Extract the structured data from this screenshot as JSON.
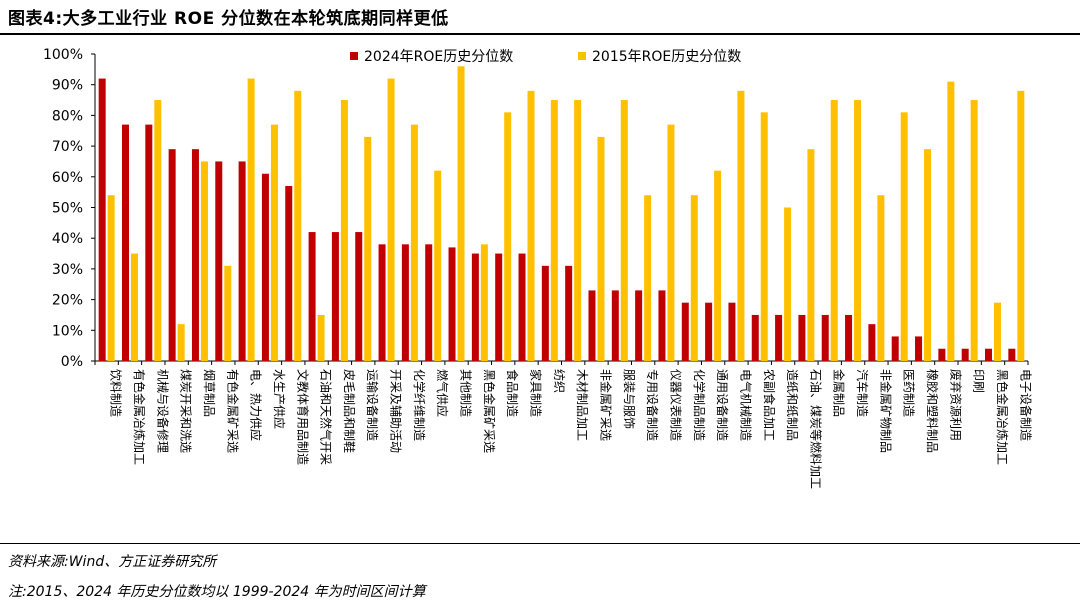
{
  "title": "图表4:大多工业行业 ROE 分位数在本轮筑底期同样更低",
  "footer": {
    "source": "资料来源:Wind、方正证券研究所",
    "note": "注:2015、2024 年历史分位数均以 1999-2024 年为时间区间计算"
  },
  "colors": {
    "series_2024": "#c00000",
    "series_2015": "#ffc000",
    "axis": "#000000"
  },
  "chart_data": {
    "type": "bar",
    "title": "",
    "xlabel": "",
    "ylabel": "",
    "ylim": [
      0,
      100
    ],
    "yticks": [
      "0%",
      "10%",
      "20%",
      "30%",
      "40%",
      "50%",
      "60%",
      "70%",
      "80%",
      "90%",
      "100%"
    ],
    "legend_position": "top-center",
    "categories": [
      "饮料制造",
      "有色金属冶炼加工",
      "机械与设备修理",
      "煤炭开采和洗选",
      "烟草制品",
      "有色金属矿采选",
      "电、热力供应",
      "水生产供应",
      "文教体育用品制造",
      "石油和天然气开采",
      "皮毛制品和制鞋",
      "运输设备制造",
      "开采及辅助活动",
      "化学纤维制造",
      "燃气供应",
      "其他制造",
      "黑色金属矿采选",
      "食品制造",
      "家具制造",
      "纺织",
      "木材制品加工",
      "非金属矿采选",
      "服装与服饰",
      "专用设备制造",
      "仪器仪表制造",
      "化学制品制造",
      "通用设备制造",
      "电气机械制造",
      "农副食品加工",
      "造纸和纸制品",
      "石油、煤炭等燃料加工",
      "金属制品",
      "汽车制造",
      "非金属矿物制品",
      "医药制造",
      "橡胶和塑料制品",
      "废弃资源利用",
      "印刷",
      "黑色金属冶炼加工",
      "电子设备制造"
    ],
    "series": [
      {
        "name": "2024年ROE历史分位数",
        "values": [
          92,
          77,
          77,
          69,
          69,
          65,
          65,
          61,
          57,
          42,
          42,
          42,
          38,
          38,
          38,
          37,
          35,
          35,
          35,
          31,
          31,
          23,
          23,
          23,
          23,
          19,
          19,
          19,
          15,
          15,
          15,
          15,
          15,
          12,
          8,
          8,
          4,
          4,
          4,
          4
        ]
      },
      {
        "name": "2015年ROE历史分位数",
        "values": [
          54,
          35,
          85,
          12,
          65,
          31,
          92,
          77,
          88,
          15,
          85,
          73,
          92,
          77,
          62,
          96,
          38,
          81,
          88,
          85,
          85,
          73,
          85,
          54,
          77,
          54,
          62,
          88,
          81,
          50,
          69,
          85,
          85,
          54,
          81,
          69,
          91,
          85,
          19,
          88
        ]
      }
    ]
  }
}
